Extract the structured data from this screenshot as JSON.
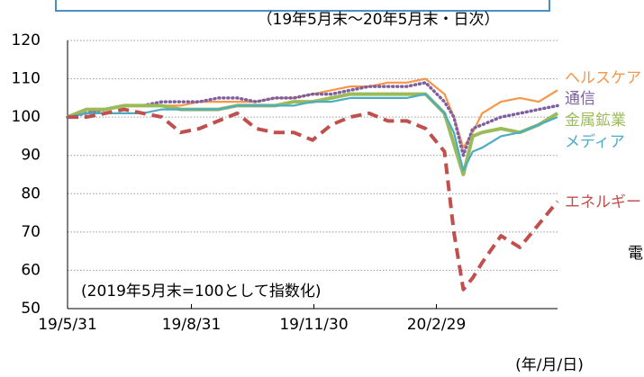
{
  "chart_data": {
    "type": "line",
    "subtitle": "（19年5月末～20年5月末・日次）",
    "annotations": [
      "(2019年5月末=100として指数化)",
      "(年/月/日)",
      "電"
    ],
    "x": [
      "2019-05-31",
      "2019-06-14",
      "2019-06-28",
      "2019-07-12",
      "2019-07-26",
      "2019-08-09",
      "2019-08-23",
      "2019-09-06",
      "2019-09-20",
      "2019-10-04",
      "2019-10-18",
      "2019-11-01",
      "2019-11-15",
      "2019-11-29",
      "2019-12-13",
      "2019-12-27",
      "2020-01-10",
      "2020-01-24",
      "2020-02-07",
      "2020-02-21",
      "2020-03-06",
      "2020-03-13",
      "2020-03-20",
      "2020-03-27",
      "2020-04-03",
      "2020-04-17",
      "2020-05-01",
      "2020-05-15",
      "2020-05-29"
    ],
    "series": [
      {
        "name": "ヘルスケア",
        "color": "#f79646",
        "style": "solid",
        "values": [
          100,
          101,
          102,
          103,
          103,
          103,
          103,
          104,
          104,
          104,
          104,
          105,
          105,
          106,
          107,
          108,
          108,
          109,
          109,
          110,
          106,
          100,
          92,
          96,
          101,
          104,
          105,
          104,
          107
        ]
      },
      {
        "name": "通信",
        "color": "#7f5fa0",
        "style": "dotted",
        "values": [
          100,
          101,
          102,
          103,
          103,
          104,
          104,
          104,
          105,
          105,
          104,
          105,
          105,
          106,
          106,
          107,
          108,
          108,
          108,
          109,
          104,
          100,
          90,
          97,
          98,
          100,
          101,
          102,
          103
        ]
      },
      {
        "name": "金属鉱業",
        "color": "#9bbb59",
        "style": "thick",
        "values": [
          100,
          102,
          102,
          103,
          103,
          103,
          102,
          102,
          102,
          103,
          103,
          103,
          104,
          104,
          105,
          106,
          106,
          106,
          106,
          106,
          101,
          93,
          85,
          95,
          96,
          97,
          96,
          98,
          101
        ]
      },
      {
        "name": "メディア",
        "color": "#4bacc6",
        "style": "solid",
        "values": [
          100,
          101,
          101,
          101,
          101,
          102,
          102,
          102,
          102,
          103,
          103,
          103,
          103,
          104,
          104,
          105,
          105,
          105,
          105,
          106,
          101,
          96,
          86,
          91,
          92,
          95,
          96,
          98,
          100
        ]
      },
      {
        "name": "エネルギー",
        "color": "#c0504d",
        "style": "dashed",
        "values": [
          100,
          100,
          101,
          102,
          101,
          100,
          96,
          97,
          99,
          101,
          97,
          96,
          96,
          94,
          98,
          100,
          101,
          99,
          99,
          97,
          91,
          70,
          55,
          58,
          62,
          69,
          66,
          72,
          78
        ]
      }
    ],
    "xlim": [
      "2019-05-31",
      "2020-05-29"
    ],
    "xticks": [
      {
        "value": "2019-05-31",
        "label": "19/5/31"
      },
      {
        "value": "2019-08-31",
        "label": "19/8/31"
      },
      {
        "value": "2019-11-30",
        "label": "19/11/30"
      },
      {
        "value": "2020-02-29",
        "label": "20/2/29"
      }
    ],
    "ylim": [
      50,
      120
    ],
    "yticks": [
      50,
      60,
      70,
      80,
      90,
      100,
      110,
      120
    ],
    "grid": true
  }
}
